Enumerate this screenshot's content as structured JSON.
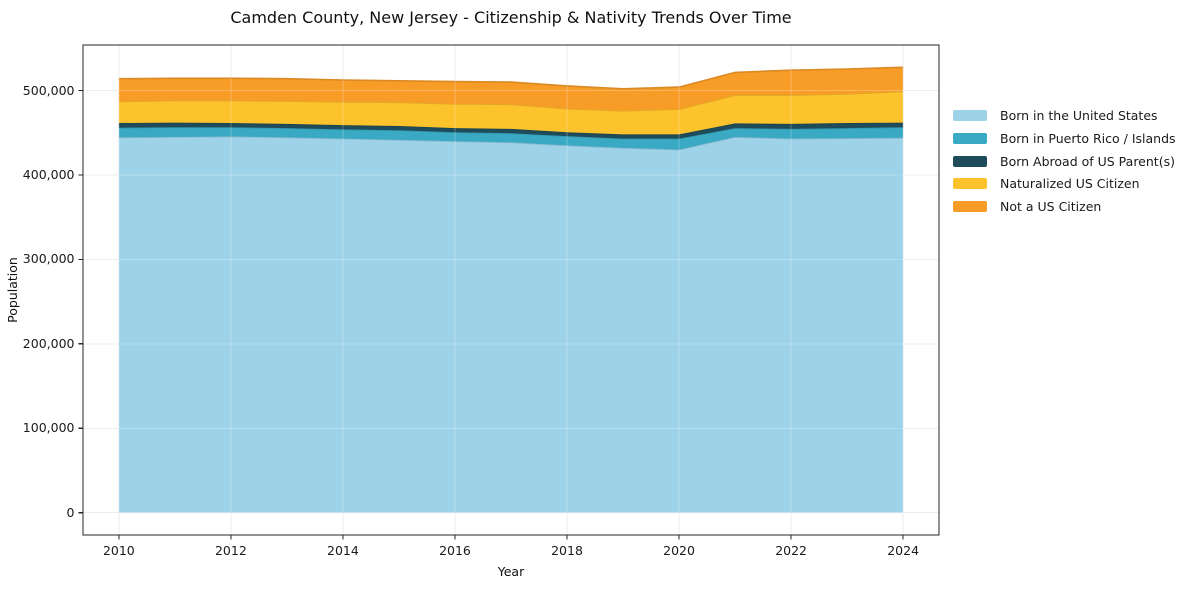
{
  "chart_data": {
    "type": "area",
    "stacked": true,
    "title": "Camden County, New Jersey - Citizenship & Nativity Trends Over Time",
    "xlabel": "Year",
    "ylabel": "Population",
    "grid": true,
    "legend_position": "right",
    "x": [
      2010,
      2011,
      2012,
      2013,
      2014,
      2015,
      2016,
      2017,
      2018,
      2019,
      2020,
      2021,
      2022,
      2023,
      2024
    ],
    "x_ticks": [
      2010,
      2012,
      2014,
      2016,
      2018,
      2020,
      2022,
      2024
    ],
    "y_ticks": [
      0,
      100000,
      200000,
      300000,
      400000,
      500000
    ],
    "xlim": [
      2009.36,
      2024.64
    ],
    "ylim": [
      -26400,
      553900
    ],
    "series": [
      {
        "name": "Born in the United States",
        "color": "#9ed2e8",
        "values": [
          444500,
          445000,
          445500,
          444500,
          443000,
          441500,
          440000,
          438500,
          435000,
          432000,
          430000,
          445000,
          443000,
          443500,
          444000
        ]
      },
      {
        "name": "Born in Puerto Rico / Islands",
        "color": "#3aa9c4",
        "values": [
          11500,
          11500,
          11000,
          11000,
          11000,
          11500,
          10500,
          11000,
          11000,
          11000,
          13000,
          10500,
          11500,
          12000,
          12500
        ]
      },
      {
        "name": "Born Abroad of US Parent(s)",
        "color": "#1f4c5a",
        "values": [
          5500,
          5500,
          5000,
          5000,
          5000,
          5000,
          5000,
          5000,
          4500,
          5000,
          5000,
          5500,
          6000,
          6000,
          5500
        ]
      },
      {
        "name": "Naturalized US Citizen",
        "color": "#fcc32c",
        "values": [
          25500,
          26000,
          26500,
          27000,
          27500,
          28000,
          28500,
          29000,
          28000,
          28000,
          30000,
          33500,
          34000,
          34500,
          37000
        ]
      },
      {
        "name": "Not a US Citizen",
        "color": "#f89c28",
        "values": [
          27000,
          26500,
          26500,
          26500,
          26000,
          25500,
          26500,
          26500,
          27000,
          26000,
          26000,
          27000,
          29500,
          29500,
          28500
        ]
      }
    ],
    "style": {
      "grid_color": "#e7e7e7",
      "spine_color": "#262626",
      "tick_color": "#262626",
      "plot_bg": "#ffffff",
      "edge_darken": 0.88
    }
  }
}
